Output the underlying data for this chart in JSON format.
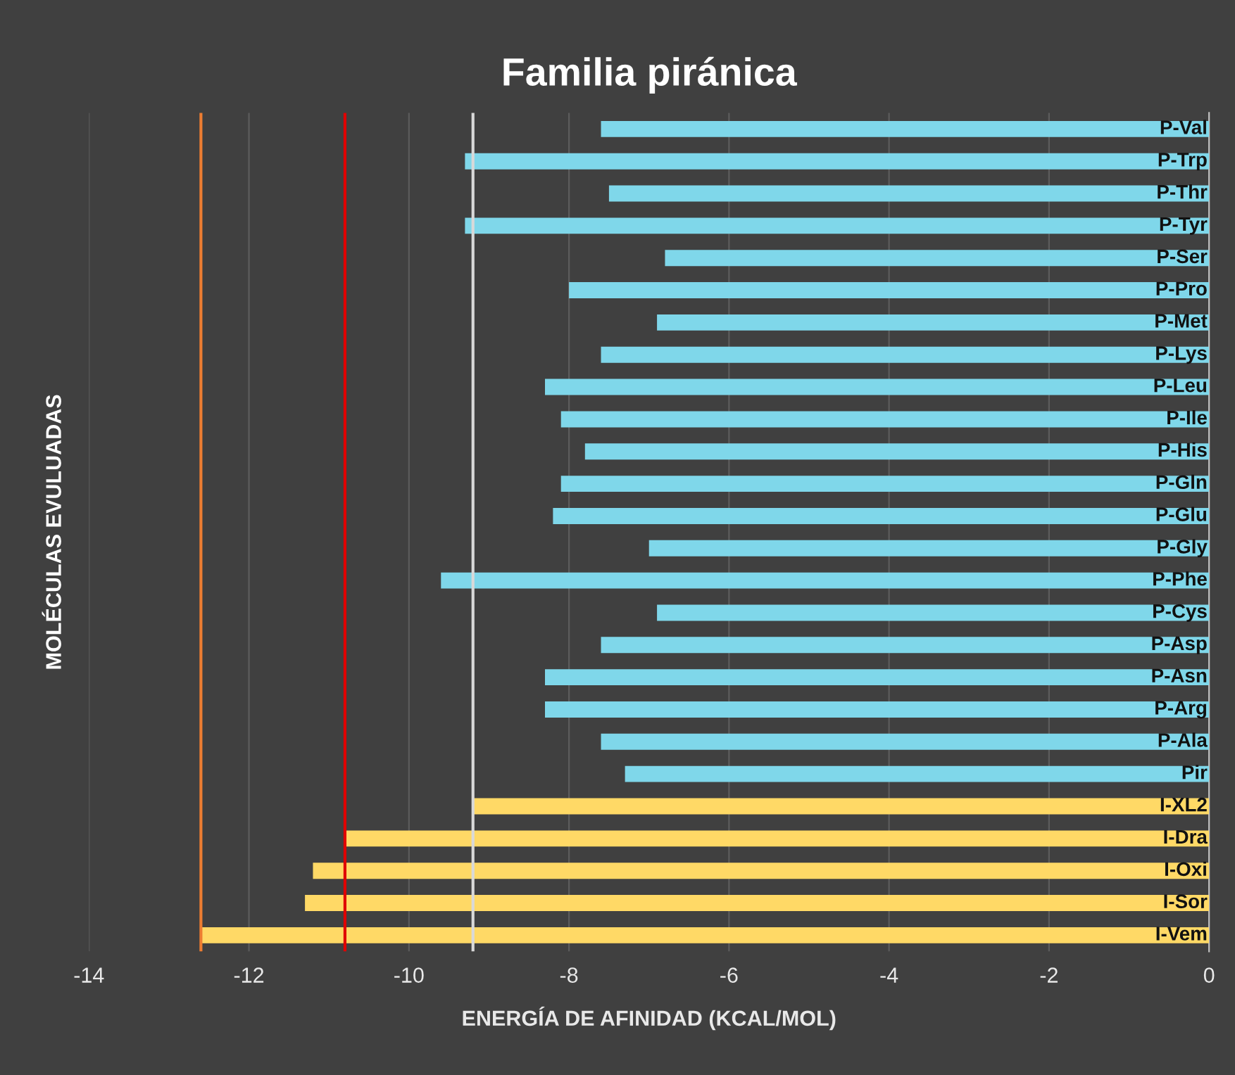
{
  "chart_data": {
    "type": "bar",
    "orientation": "horizontal",
    "title": "Familia piránica",
    "xlabel": "ENERGÍA DE AFINIDAD (KCAL/MOL)",
    "ylabel": "MOLÉCULAS EVULUADAS",
    "categories": [
      "P-Val",
      "P-Trp",
      "P-Thr",
      "P-Tyr",
      "P-Ser",
      "P-Pro",
      "P-Met",
      "P-Lys",
      "P-Leu",
      "P-Ile",
      "P-His",
      "P-Gln",
      "P-Glu",
      "P-Gly",
      "P-Phe",
      "P-Cys",
      "P-Asp",
      "P-Asn",
      "P-Arg",
      "P-Ala",
      "Pir",
      "I-XL2",
      "I-Dra",
      "I-Oxi",
      "I-Sor",
      "I-Vem"
    ],
    "values": [
      -7.6,
      -9.3,
      -7.5,
      -9.3,
      -6.8,
      -8.0,
      -6.9,
      -7.6,
      -8.3,
      -8.1,
      -7.8,
      -8.1,
      -8.2,
      -7.0,
      -9.6,
      -6.9,
      -7.6,
      -8.3,
      -8.3,
      -7.6,
      -7.3,
      -9.2,
      -10.8,
      -11.2,
      -11.3,
      -12.6
    ],
    "colors": [
      "#7fd7ea",
      "#7fd7ea",
      "#7fd7ea",
      "#7fd7ea",
      "#7fd7ea",
      "#7fd7ea",
      "#7fd7ea",
      "#7fd7ea",
      "#7fd7ea",
      "#7fd7ea",
      "#7fd7ea",
      "#7fd7ea",
      "#7fd7ea",
      "#7fd7ea",
      "#7fd7ea",
      "#7fd7ea",
      "#7fd7ea",
      "#7fd7ea",
      "#7fd7ea",
      "#7fd7ea",
      "#7fd7ea",
      "#ffd966",
      "#ffd966",
      "#ffd966",
      "#ffd966",
      "#ffd966"
    ],
    "xlim": [
      -14,
      0
    ],
    "xticks": [
      -14,
      -12,
      -10,
      -8,
      -6,
      -4,
      -2,
      0
    ],
    "grid": "x",
    "ref_lines": [
      {
        "axis": "x",
        "value": -12.6,
        "color": "#ed7d31"
      },
      {
        "axis": "x",
        "value": -10.8,
        "color": "#e00000"
      },
      {
        "axis": "x",
        "value": -9.2,
        "color": "#d9d9d9"
      }
    ]
  }
}
